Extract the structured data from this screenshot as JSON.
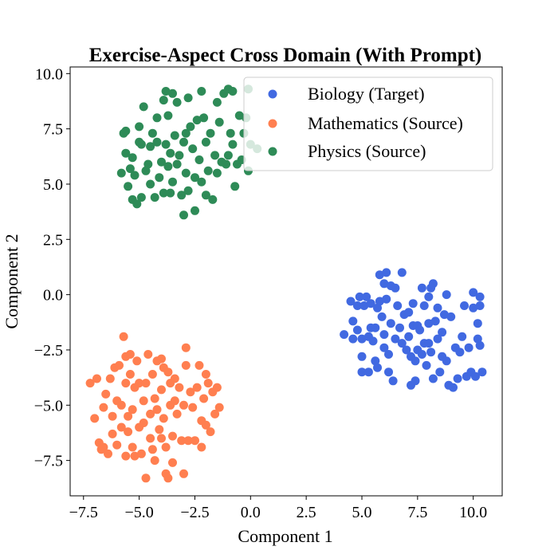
{
  "chart_data": {
    "type": "scatter",
    "title": "Exercise-Aspect Cross Domain (With Prompt)",
    "xlabel": "Component 1",
    "ylabel": "Component 2",
    "xlim": [
      -8.1,
      11.3
    ],
    "ylim": [
      -9.1,
      10.3
    ],
    "xticks": [
      -7.5,
      -5.0,
      -2.5,
      0.0,
      2.5,
      5.0,
      7.5,
      10.0
    ],
    "xtick_labels": [
      "−7.5",
      "−5.0",
      "−2.5",
      "0.0",
      "2.5",
      "5.0",
      "7.5",
      "10.0"
    ],
    "yticks": [
      -7.5,
      -5.0,
      -2.5,
      0.0,
      2.5,
      5.0,
      7.5,
      10.0
    ],
    "ytick_labels": [
      "−7.5",
      "−5.0",
      "−2.5",
      "0.0",
      "2.5",
      "5.0",
      "7.5",
      "10.0"
    ],
    "grid": false,
    "legend_position": "top-right",
    "series": [
      {
        "name": "Biology (Target)",
        "color": "#4169E1",
        "points": [
          [
            4.2,
            -1.8
          ],
          [
            4.5,
            -0.3
          ],
          [
            4.6,
            -1.2
          ],
          [
            4.6,
            -2.0
          ],
          [
            4.8,
            -0.5
          ],
          [
            4.8,
            -1.6
          ],
          [
            4.9,
            -0.1
          ],
          [
            5.0,
            -2.0
          ],
          [
            5.0,
            -2.8
          ],
          [
            5.0,
            -3.5
          ],
          [
            5.1,
            -0.5
          ],
          [
            5.2,
            -0.1
          ],
          [
            5.3,
            -1.9
          ],
          [
            5.3,
            -3.5
          ],
          [
            5.4,
            -0.4
          ],
          [
            5.4,
            -1.5
          ],
          [
            5.5,
            -2.1
          ],
          [
            5.6,
            -3.0
          ],
          [
            5.6,
            -1.5
          ],
          [
            5.7,
            -0.6
          ],
          [
            5.7,
            -3.3
          ],
          [
            5.8,
            0.9
          ],
          [
            5.8,
            -0.3
          ],
          [
            5.9,
            -1.0
          ],
          [
            6.0,
            0.5
          ],
          [
            6.0,
            -1.8
          ],
          [
            6.0,
            -2.4
          ],
          [
            6.1,
            1.0
          ],
          [
            6.1,
            -0.2
          ],
          [
            6.2,
            -2.7
          ],
          [
            6.2,
            -3.5
          ],
          [
            6.3,
            0.4
          ],
          [
            6.3,
            -1.3
          ],
          [
            6.4,
            -3.9
          ],
          [
            6.5,
            0.3
          ],
          [
            6.5,
            -2.0
          ],
          [
            6.6,
            -0.5
          ],
          [
            6.7,
            -1.5
          ],
          [
            6.8,
            1.0
          ],
          [
            6.8,
            -2.2
          ],
          [
            6.9,
            -0.9
          ],
          [
            7.0,
            -2.5
          ],
          [
            7.1,
            -0.8
          ],
          [
            7.1,
            -1.9
          ],
          [
            7.2,
            -2.8
          ],
          [
            7.2,
            -4.1
          ],
          [
            7.3,
            -0.4
          ],
          [
            7.3,
            -1.4
          ],
          [
            7.4,
            -3.0
          ],
          [
            7.4,
            -3.9
          ],
          [
            7.5,
            -1.4
          ],
          [
            7.5,
            -2.5
          ],
          [
            7.6,
            -1.6
          ],
          [
            7.7,
            0.3
          ],
          [
            7.7,
            -2.7
          ],
          [
            7.8,
            -0.5
          ],
          [
            7.8,
            -2.2
          ],
          [
            7.9,
            -3.2
          ],
          [
            8.0,
            -0.1
          ],
          [
            8.0,
            -1.3
          ],
          [
            8.0,
            -2.2
          ],
          [
            8.1,
            0.3
          ],
          [
            8.1,
            -2.6
          ],
          [
            8.2,
            -3.8
          ],
          [
            8.2,
            0.5
          ],
          [
            8.3,
            -1.2
          ],
          [
            8.4,
            -2.0
          ],
          [
            8.4,
            -0.6
          ],
          [
            8.5,
            -3.5
          ],
          [
            8.6,
            -1.7
          ],
          [
            8.6,
            -2.8
          ],
          [
            8.7,
            -0.9
          ],
          [
            8.8,
            -3.0
          ],
          [
            8.8,
            0.0
          ],
          [
            8.9,
            -4.1
          ],
          [
            9.0,
            -1.0
          ],
          [
            9.1,
            -4.2
          ],
          [
            9.2,
            -2.4
          ],
          [
            9.3,
            -3.8
          ],
          [
            9.4,
            -2.6
          ],
          [
            9.5,
            -1.9
          ],
          [
            9.6,
            -0.5
          ],
          [
            9.7,
            -3.7
          ],
          [
            9.8,
            -2.4
          ],
          [
            9.9,
            -3.5
          ],
          [
            10.0,
            0.1
          ],
          [
            10.0,
            -0.6
          ],
          [
            10.1,
            -3.7
          ],
          [
            10.2,
            -1.3
          ],
          [
            10.2,
            -2.0
          ],
          [
            10.3,
            -0.1
          ],
          [
            10.3,
            -0.5
          ],
          [
            10.3,
            -2.3
          ],
          [
            10.4,
            -3.5
          ]
        ]
      },
      {
        "name": "Mathematics (Source)",
        "color": "#FF7F50",
        "points": [
          [
            -7.2,
            -4.0
          ],
          [
            -7.0,
            -5.6
          ],
          [
            -6.9,
            -3.8
          ],
          [
            -6.8,
            -6.7
          ],
          [
            -6.7,
            -7.0
          ],
          [
            -6.6,
            -5.1
          ],
          [
            -6.6,
            -6.9
          ],
          [
            -6.5,
            -4.5
          ],
          [
            -6.4,
            -7.2
          ],
          [
            -6.3,
            -3.8
          ],
          [
            -6.2,
            -5.5
          ],
          [
            -6.2,
            -6.3
          ],
          [
            -6.1,
            -3.3
          ],
          [
            -6.0,
            -4.8
          ],
          [
            -6.0,
            -6.8
          ],
          [
            -5.9,
            -3.2
          ],
          [
            -5.8,
            -5.0
          ],
          [
            -5.8,
            -6.0
          ],
          [
            -5.7,
            -1.9
          ],
          [
            -5.6,
            -2.8
          ],
          [
            -5.6,
            -4.0
          ],
          [
            -5.6,
            -7.3
          ],
          [
            -5.5,
            -5.5
          ],
          [
            -5.5,
            -6.2
          ],
          [
            -5.4,
            -2.7
          ],
          [
            -5.4,
            -3.6
          ],
          [
            -5.3,
            -5.2
          ],
          [
            -5.3,
            -6.9
          ],
          [
            -5.2,
            -4.2
          ],
          [
            -5.2,
            -7.3
          ],
          [
            -5.1,
            -3.0
          ],
          [
            -5.0,
            -6.0
          ],
          [
            -5.0,
            -4.0
          ],
          [
            -4.9,
            -7.2
          ],
          [
            -4.8,
            -4.8
          ],
          [
            -4.8,
            -5.8
          ],
          [
            -4.7,
            -4.0
          ],
          [
            -4.7,
            -8.3
          ],
          [
            -4.6,
            -2.7
          ],
          [
            -4.5,
            -5.4
          ],
          [
            -4.5,
            -6.5
          ],
          [
            -4.4,
            -3.6
          ],
          [
            -4.4,
            -7.0
          ],
          [
            -4.3,
            -4.7
          ],
          [
            -4.3,
            -7.5
          ],
          [
            -4.2,
            -3.0
          ],
          [
            -4.2,
            -5.2
          ],
          [
            -4.1,
            -6.1
          ],
          [
            -4.0,
            -2.9
          ],
          [
            -4.0,
            -4.3
          ],
          [
            -4.0,
            -6.5
          ],
          [
            -3.9,
            -3.3
          ],
          [
            -3.9,
            -5.6
          ],
          [
            -3.8,
            -8.1
          ],
          [
            -3.8,
            -6.9
          ],
          [
            -3.7,
            -3.5
          ],
          [
            -3.7,
            -8.3
          ],
          [
            -3.6,
            -4.0
          ],
          [
            -3.6,
            -5.0
          ],
          [
            -3.5,
            -6.4
          ],
          [
            -3.5,
            -7.6
          ],
          [
            -3.4,
            -4.8
          ],
          [
            -3.4,
            -3.8
          ],
          [
            -3.3,
            -5.4
          ],
          [
            -3.2,
            -4.2
          ],
          [
            -3.1,
            -6.6
          ],
          [
            -3.0,
            -8.1
          ],
          [
            -3.0,
            -5.0
          ],
          [
            -2.9,
            -3.2
          ],
          [
            -2.9,
            -2.4
          ],
          [
            -2.8,
            -6.6
          ],
          [
            -2.7,
            -4.4
          ],
          [
            -2.6,
            -5.1
          ],
          [
            -2.5,
            -6.6
          ],
          [
            -2.4,
            -4.2
          ],
          [
            -2.3,
            -3.2
          ],
          [
            -2.2,
            -5.7
          ],
          [
            -2.2,
            -6.9
          ],
          [
            -2.1,
            -4.7
          ],
          [
            -2.0,
            -3.6
          ],
          [
            -2.0,
            -5.9
          ],
          [
            -1.9,
            -4.0
          ],
          [
            -1.8,
            -6.2
          ],
          [
            -1.7,
            -4.4
          ],
          [
            -1.6,
            -5.4
          ],
          [
            -1.5,
            -4.2
          ],
          [
            -1.4,
            -5.1
          ]
        ]
      },
      {
        "name": "Physics (Source)",
        "color": "#2E8B57",
        "points": [
          [
            -5.8,
            5.5
          ],
          [
            -5.7,
            7.3
          ],
          [
            -5.6,
            6.4
          ],
          [
            -5.6,
            7.4
          ],
          [
            -5.5,
            4.9
          ],
          [
            -5.4,
            5.7
          ],
          [
            -5.3,
            4.3
          ],
          [
            -5.3,
            6.2
          ],
          [
            -5.2,
            5.4
          ],
          [
            -5.1,
            4.1
          ],
          [
            -5.0,
            7.6
          ],
          [
            -5.0,
            6.9
          ],
          [
            -4.9,
            4.4
          ],
          [
            -4.9,
            6.8
          ],
          [
            -4.8,
            8.5
          ],
          [
            -4.7,
            5.6
          ],
          [
            -4.6,
            5.9
          ],
          [
            -4.5,
            6.7
          ],
          [
            -4.5,
            5.0
          ],
          [
            -4.4,
            7.3
          ],
          [
            -4.3,
            4.4
          ],
          [
            -4.2,
            6.9
          ],
          [
            -4.2,
            8.0
          ],
          [
            -4.1,
            5.3
          ],
          [
            -4.0,
            6.0
          ],
          [
            -3.9,
            4.6
          ],
          [
            -3.9,
            8.8
          ],
          [
            -3.8,
            9.2
          ],
          [
            -3.8,
            6.8
          ],
          [
            -3.7,
            5.8
          ],
          [
            -3.7,
            8.1
          ],
          [
            -3.6,
            6.4
          ],
          [
            -3.6,
            4.6
          ],
          [
            -3.5,
            5.1
          ],
          [
            -3.5,
            9.1
          ],
          [
            -3.4,
            7.2
          ],
          [
            -3.3,
            5.9
          ],
          [
            -3.3,
            8.7
          ],
          [
            -3.2,
            6.3
          ],
          [
            -3.1,
            4.5
          ],
          [
            -3.0,
            6.9
          ],
          [
            -3.0,
            3.6
          ],
          [
            -2.9,
            7.3
          ],
          [
            -2.9,
            5.5
          ],
          [
            -2.8,
            8.9
          ],
          [
            -2.8,
            4.7
          ],
          [
            -2.7,
            7.6
          ],
          [
            -2.6,
            6.6
          ],
          [
            -2.5,
            5.3
          ],
          [
            -2.5,
            3.8
          ],
          [
            -2.4,
            7.9
          ],
          [
            -2.3,
            6.1
          ],
          [
            -2.2,
            9.2
          ],
          [
            -2.2,
            5.1
          ],
          [
            -2.1,
            8.0
          ],
          [
            -2.0,
            4.5
          ],
          [
            -2.0,
            6.9
          ],
          [
            -1.9,
            5.6
          ],
          [
            -1.8,
            7.3
          ],
          [
            -1.7,
            4.3
          ],
          [
            -1.6,
            6.3
          ],
          [
            -1.5,
            5.5
          ],
          [
            -1.5,
            8.7
          ],
          [
            -1.4,
            7.8
          ],
          [
            -1.3,
            6.0
          ],
          [
            -1.2,
            9.1
          ],
          [
            -1.1,
            5.9
          ],
          [
            -1.0,
            6.3
          ],
          [
            -1.0,
            9.3
          ],
          [
            -0.9,
            7.3
          ],
          [
            -0.8,
            6.8
          ],
          [
            -0.7,
            4.9
          ],
          [
            -0.6,
            5.9
          ],
          [
            -0.5,
            8.1
          ],
          [
            -0.4,
            6.1
          ],
          [
            -0.3,
            7.3
          ],
          [
            -0.2,
            8.0
          ],
          [
            -0.1,
            9.3
          ],
          [
            -0.1,
            5.6
          ],
          [
            0.0,
            6.8
          ],
          [
            0.3,
            6.6
          ],
          [
            -0.8,
            9.2
          ]
        ]
      }
    ]
  }
}
